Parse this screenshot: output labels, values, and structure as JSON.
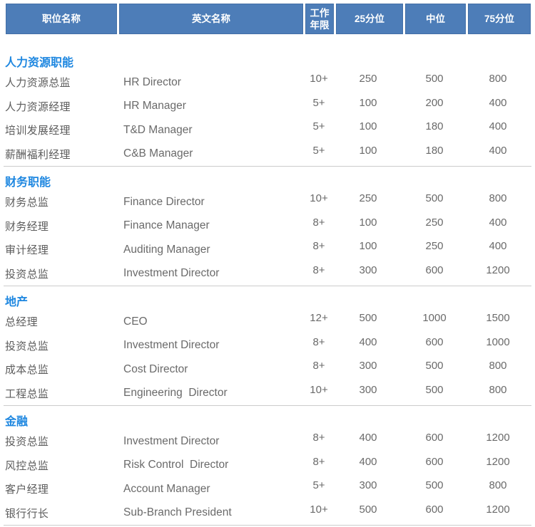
{
  "table": {
    "columns": [
      "职位名称",
      "英文名称",
      "工作年限",
      "25分位",
      "中位",
      "75分位"
    ],
    "sections": [
      {
        "title": "人力资源职能",
        "rows": [
          {
            "cn": "人力资源总监",
            "en": "HR Director",
            "years": "10+",
            "p25": "250",
            "p50": "500",
            "p75": "800"
          },
          {
            "cn": "人力资源经理",
            "en": "HR Manager",
            "years": "5+",
            "p25": "100",
            "p50": "200",
            "p75": "400"
          },
          {
            "cn": "培训发展经理",
            "en": "T&D Manager",
            "years": "5+",
            "p25": "100",
            "p50": "180",
            "p75": "400"
          },
          {
            "cn": "薪酬福利经理",
            "en": "C&B Manager",
            "years": "5+",
            "p25": "100",
            "p50": "180",
            "p75": "400"
          }
        ]
      },
      {
        "title": "财务职能",
        "rows": [
          {
            "cn": "财务总监",
            "en": "Finance Director",
            "years": "10+",
            "p25": "250",
            "p50": "500",
            "p75": "800"
          },
          {
            "cn": "财务经理",
            "en": "Finance Manager",
            "years": "8+",
            "p25": "100",
            "p50": "250",
            "p75": "400"
          },
          {
            "cn": "审计经理",
            "en": "Auditing Manager",
            "years": "8+",
            "p25": "100",
            "p50": "250",
            "p75": "400"
          },
          {
            "cn": "投资总监",
            "en": "Investment Director",
            "years": "8+",
            "p25": "300",
            "p50": "600",
            "p75": "1200"
          }
        ]
      },
      {
        "title": "地产",
        "rows": [
          {
            "cn": "总经理",
            "en": "CEO",
            "years": "12+",
            "p25": "500",
            "p50": "1000",
            "p75": "1500"
          },
          {
            "cn": "投资总监",
            "en": "Investment Director",
            "years": "8+",
            "p25": "400",
            "p50": "600",
            "p75": "1000"
          },
          {
            "cn": "成本总监",
            "en": "Cost Director",
            "years": "8+",
            "p25": "300",
            "p50": "500",
            "p75": "800"
          },
          {
            "cn": "工程总监",
            "en": "Engineering  Director",
            "years": "10+",
            "p25": "300",
            "p50": "500",
            "p75": "800"
          }
        ]
      },
      {
        "title": "金融",
        "rows": [
          {
            "cn": "投资总监",
            "en": "Investment Director",
            "years": "8+",
            "p25": "400",
            "p50": "600",
            "p75": "1200"
          },
          {
            "cn": "风控总监",
            "en": "Risk Control  Director",
            "years": "8+",
            "p25": "400",
            "p50": "600",
            "p75": "1200"
          },
          {
            "cn": "客户经理",
            "en": "Account Manager",
            "years": "5+",
            "p25": "300",
            "p50": "500",
            "p75": "800"
          },
          {
            "cn": "银行行长",
            "en": "Sub-Branch President",
            "years": "10+",
            "p25": "500",
            "p50": "600",
            "p75": "1200"
          }
        ]
      }
    ],
    "colors": {
      "header_bg": "#4d7db8",
      "section_title": "#1e87e0",
      "row_text": "#5c5c5c",
      "divider": "#cccccc"
    }
  }
}
